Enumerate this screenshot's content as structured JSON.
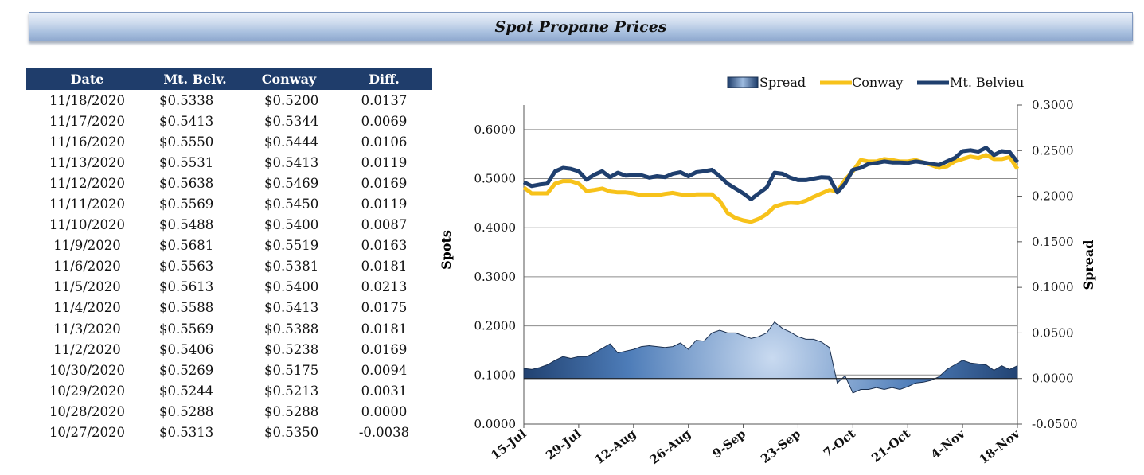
{
  "header": {
    "title": "Spot Propane Prices"
  },
  "table": {
    "columns": [
      "Date",
      "Mt. Belv.",
      "Conway",
      "Diff."
    ],
    "rows": [
      [
        "11/18/2020",
        "$0.5338",
        "$0.5200",
        "0.0137"
      ],
      [
        "11/17/2020",
        "$0.5413",
        "$0.5344",
        "0.0069"
      ],
      [
        "11/16/2020",
        "$0.5550",
        "$0.5444",
        "0.0106"
      ],
      [
        "11/13/2020",
        "$0.5531",
        "$0.5413",
        "0.0119"
      ],
      [
        "11/12/2020",
        "$0.5638",
        "$0.5469",
        "0.0169"
      ],
      [
        "11/11/2020",
        "$0.5569",
        "$0.5450",
        "0.0119"
      ],
      [
        "11/10/2020",
        "$0.5488",
        "$0.5400",
        "0.0087"
      ],
      [
        "11/9/2020",
        "$0.5681",
        "$0.5519",
        "0.0163"
      ],
      [
        "11/6/2020",
        "$0.5563",
        "$0.5381",
        "0.0181"
      ],
      [
        "11/5/2020",
        "$0.5613",
        "$0.5400",
        "0.0213"
      ],
      [
        "11/4/2020",
        "$0.5588",
        "$0.5413",
        "0.0175"
      ],
      [
        "11/3/2020",
        "$0.5569",
        "$0.5388",
        "0.0181"
      ],
      [
        "11/2/2020",
        "$0.5406",
        "$0.5238",
        "0.0169"
      ],
      [
        "10/30/2020",
        "$0.5269",
        "$0.5175",
        "0.0094"
      ],
      [
        "10/29/2020",
        "$0.5244",
        "$0.5213",
        "0.0031"
      ],
      [
        "10/28/2020",
        "$0.5288",
        "$0.5288",
        "0.0000"
      ],
      [
        "10/27/2020",
        "$0.5313",
        "$0.5350",
        "-0.0038"
      ]
    ]
  },
  "chart_data": {
    "type": "line",
    "title": "",
    "ylabel": "Spots",
    "y2label": "Spread",
    "ylim": [
      0,
      0.65
    ],
    "y2lim": [
      -0.05,
      0.3
    ],
    "yticks": [
      "0.0000",
      "0.1000",
      "0.2000",
      "0.3000",
      "0.4000",
      "0.5000",
      "0.6000"
    ],
    "y2ticks": [
      "-0.0500",
      "0.0000",
      "0.0500",
      "0.1000",
      "0.1500",
      "0.2000",
      "0.2500",
      "0.3000"
    ],
    "yticks_values": [
      0,
      0.1,
      0.2,
      0.3,
      0.4,
      0.5,
      0.6
    ],
    "y2ticks_values": [
      -0.05,
      0,
      0.05,
      0.1,
      0.15,
      0.2,
      0.25,
      0.3
    ],
    "xticks": [
      "15-Jul",
      "29-Jul",
      "12-Aug",
      "26-Aug",
      "9-Sep",
      "23-Sep",
      "7-Oct",
      "21-Oct",
      "4-Nov",
      "18-Nov"
    ],
    "legend_position": "top-right",
    "x_days": [
      0,
      2,
      4,
      6,
      8,
      10,
      12,
      14,
      16,
      18,
      20,
      22,
      24,
      26,
      28,
      30,
      32,
      34,
      36,
      38,
      40,
      42,
      44,
      46,
      48,
      50,
      52,
      54,
      56,
      58,
      60,
      62,
      64,
      66,
      68,
      70,
      72,
      74,
      76,
      78,
      80,
      82,
      84,
      86,
      88,
      90,
      92,
      94,
      96,
      98,
      100,
      102,
      104,
      106,
      108,
      110,
      112,
      114,
      116,
      118,
      120,
      122,
      124,
      126
    ],
    "series": [
      {
        "name": "Mt. Belvieu",
        "axis": "left",
        "color": "#1f3f6e",
        "values": [
          0.493,
          0.485,
          0.488,
          0.49,
          0.515,
          0.522,
          0.52,
          0.515,
          0.498,
          0.508,
          0.515,
          0.503,
          0.512,
          0.506,
          0.507,
          0.507,
          0.502,
          0.505,
          0.503,
          0.51,
          0.513,
          0.505,
          0.513,
          0.515,
          0.518,
          0.505,
          0.49,
          0.48,
          0.47,
          0.458,
          0.47,
          0.482,
          0.512,
          0.51,
          0.502,
          0.497,
          0.497,
          0.5,
          0.503,
          0.502,
          0.472,
          0.49,
          0.518,
          0.522,
          0.53,
          0.532,
          0.535,
          0.533,
          0.533,
          0.532,
          0.535,
          0.533,
          0.53,
          0.528,
          0.535,
          0.542,
          0.556,
          0.558,
          0.555,
          0.563,
          0.548,
          0.556,
          0.554,
          0.534
        ]
      },
      {
        "name": "Conway",
        "axis": "left",
        "color": "#f7c21a",
        "values": [
          0.482,
          0.47,
          0.47,
          0.47,
          0.49,
          0.495,
          0.495,
          0.49,
          0.475,
          0.477,
          0.48,
          0.474,
          0.472,
          0.472,
          0.47,
          0.466,
          0.466,
          0.466,
          0.469,
          0.471,
          0.468,
          0.466,
          0.468,
          0.468,
          0.468,
          0.455,
          0.43,
          0.42,
          0.415,
          0.412,
          0.418,
          0.428,
          0.443,
          0.448,
          0.451,
          0.45,
          0.455,
          0.463,
          0.47,
          0.477,
          0.474,
          0.498,
          0.515,
          0.538,
          0.535,
          0.535,
          0.54,
          0.538,
          0.535,
          0.535,
          0.538,
          0.533,
          0.528,
          0.522,
          0.525,
          0.535,
          0.54,
          0.545,
          0.542,
          0.548,
          0.54,
          0.54,
          0.544,
          0.52
        ]
      },
      {
        "name": "Spread",
        "axis": "right",
        "type": "area",
        "values": [
          0.011,
          0.01,
          0.012,
          0.015,
          0.02,
          0.024,
          0.022,
          0.024,
          0.024,
          0.028,
          0.033,
          0.038,
          0.028,
          0.03,
          0.032,
          0.035,
          0.036,
          0.035,
          0.034,
          0.035,
          0.039,
          0.032,
          0.042,
          0.041,
          0.05,
          0.053,
          0.05,
          0.05,
          0.047,
          0.044,
          0.046,
          0.05,
          0.062,
          0.055,
          0.051,
          0.046,
          0.043,
          0.043,
          0.04,
          0.034,
          -0.005,
          0.003,
          -0.016,
          -0.012,
          -0.012,
          -0.01,
          -0.012,
          -0.01,
          -0.012,
          -0.009,
          -0.005,
          -0.004,
          -0.002,
          0.002,
          0.01,
          0.015,
          0.02,
          0.017,
          0.016,
          0.015,
          0.009,
          0.014,
          0.01,
          0.014
        ]
      }
    ]
  }
}
